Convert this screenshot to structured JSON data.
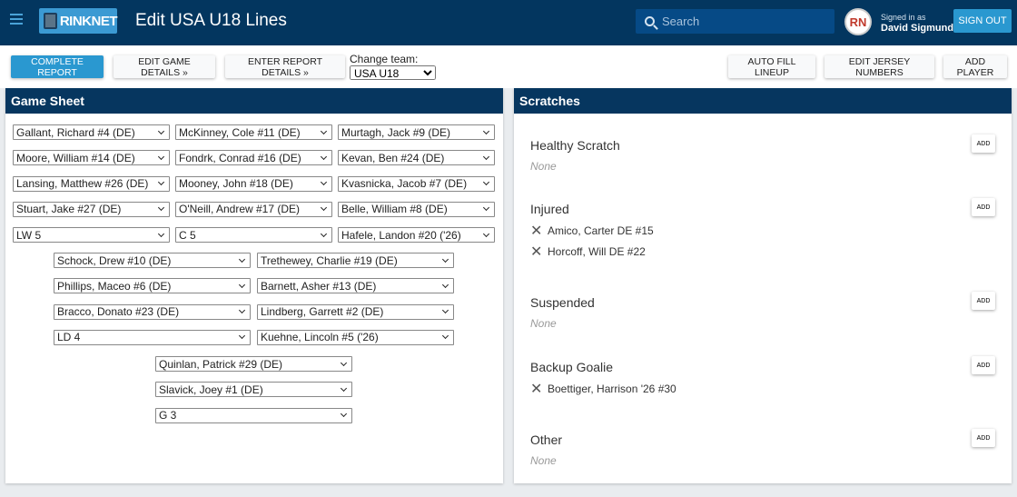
{
  "header": {
    "logo_text": "RINKNET",
    "title": "Edit USA U18 Lines",
    "search_placeholder": "Search",
    "avatar_text": "RN",
    "signed_in_label": "Signed in as",
    "user_name": "David Sigmund",
    "sign_out": "SIGN OUT"
  },
  "toolbar": {
    "complete_report": "COMPLETE REPORT",
    "edit_game_details": "EDIT GAME DETAILS »",
    "enter_report_details": "ENTER REPORT DETAILS »",
    "change_team_label": "Change team:",
    "team": "USA U18",
    "auto_fill": "AUTO FILL LINEUP",
    "edit_jersey": "EDIT JERSEY NUMBERS",
    "add_player": "ADD PLAYER"
  },
  "game_sheet": {
    "title": "Game Sheet",
    "forwards": [
      [
        "Gallant, Richard #4 (DE)",
        "McKinney, Cole #11 (DE)",
        "Murtagh, Jack #9 (DE)"
      ],
      [
        "Moore, William #14 (DE)",
        "Fondrk, Conrad #16 (DE)",
        "Kevan, Ben #24 (DE)"
      ],
      [
        "Lansing, Matthew #26 (DE)",
        "Mooney, John #18 (DE)",
        "Kvasnicka, Jacob #7 (DE)"
      ],
      [
        "Stuart, Jake #27 (DE)",
        "O'Neill, Andrew #17 (DE)",
        "Belle, William #8 (DE)"
      ],
      [
        "LW 5",
        "C 5",
        "Hafele, Landon #20 ('26)"
      ]
    ],
    "defense": [
      [
        "Schock, Drew #10 (DE)",
        "Trethewey, Charlie #19 (DE)"
      ],
      [
        "Phillips, Maceo #6 (DE)",
        "Barnett, Asher #13 (DE)"
      ],
      [
        "Bracco, Donato #23 (DE)",
        "Lindberg, Garrett #2 (DE)"
      ],
      [
        "LD 4",
        "Kuehne, Lincoln #5 ('26)"
      ]
    ],
    "goalies": [
      "Quinlan, Patrick #29 (DE)",
      "Slavick, Joey #1 (DE)",
      "G 3"
    ]
  },
  "scratches": {
    "title": "Scratches",
    "add_label": "ADD",
    "none_label": "None",
    "sections": [
      {
        "title": "Healthy Scratch",
        "players": []
      },
      {
        "title": "Injured",
        "players": [
          "Amico, Carter DE #15",
          "Horcoff, Will DE #22"
        ]
      },
      {
        "title": "Suspended",
        "players": []
      },
      {
        "title": "Backup Goalie",
        "players": [
          "Boettiger, Harrison '26 #30"
        ]
      },
      {
        "title": "Other",
        "players": []
      }
    ]
  }
}
